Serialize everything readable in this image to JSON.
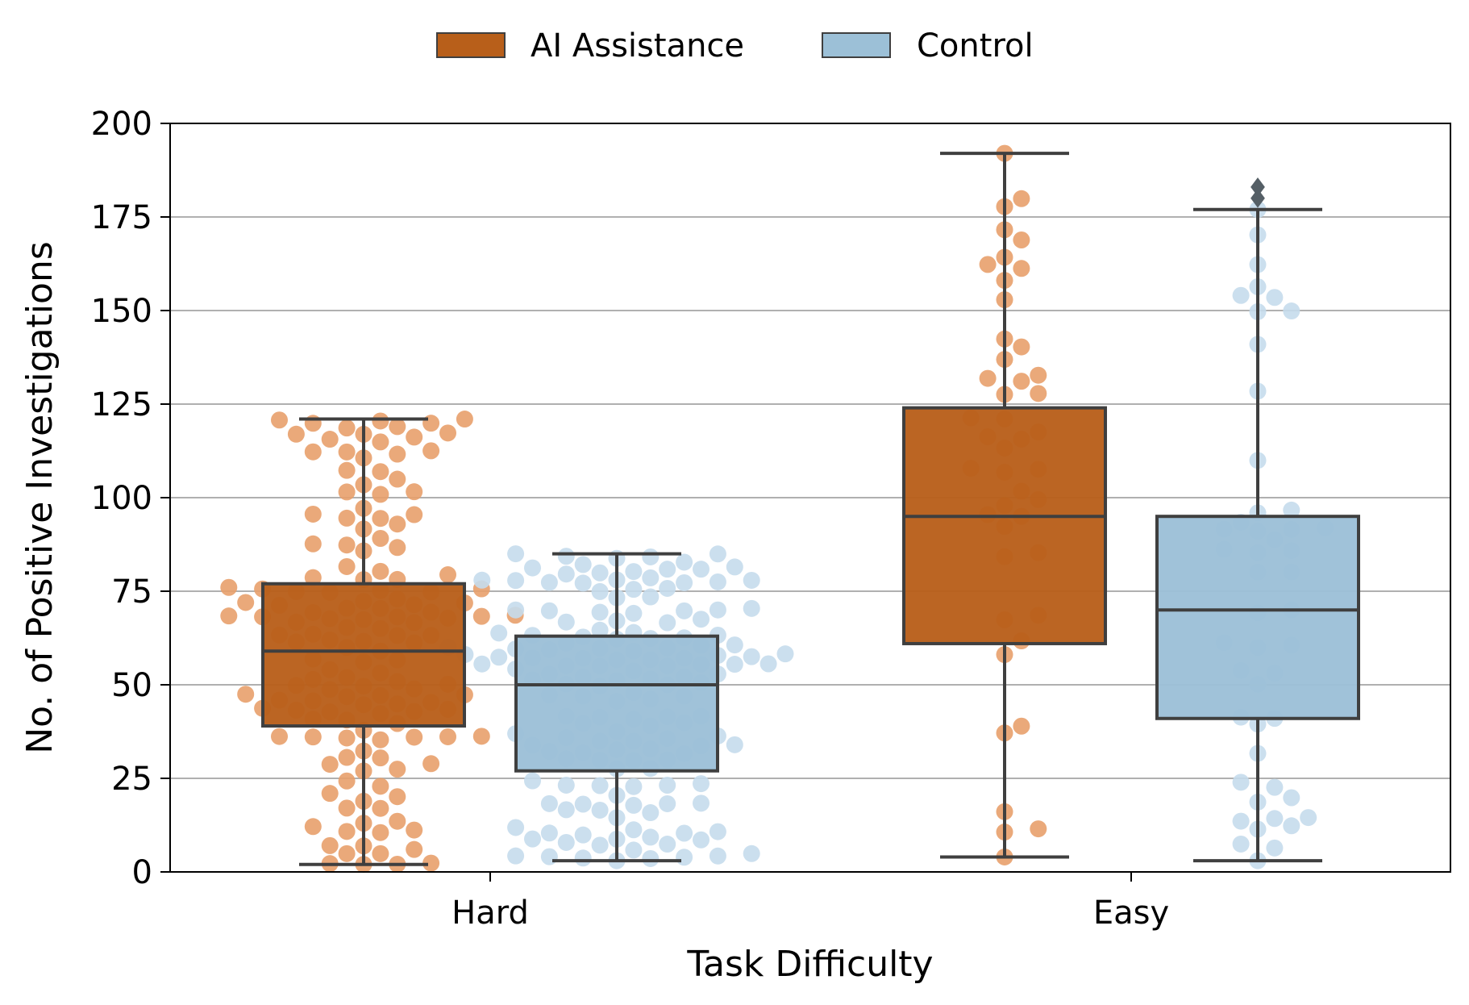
{
  "chart_data": {
    "type": "box",
    "title": "",
    "xlabel": "Task Difficulty",
    "ylabel": "No. of Positive Investigations",
    "ylim": [
      0,
      200
    ],
    "yticks": [
      0,
      25,
      50,
      75,
      100,
      125,
      150,
      175,
      200
    ],
    "grid": "y",
    "categories": [
      "Hard",
      "Easy"
    ],
    "legend": {
      "placement": "top-center",
      "entries": [
        "AI Assistance",
        "Control"
      ]
    },
    "series": [
      {
        "name": "AI Assistance",
        "color": "#b85f1a",
        "point_color": "#e8a06c",
        "boxes": [
          {
            "category": "Hard",
            "whisker_low": 2,
            "q1": 39,
            "median": 59,
            "q3": 77,
            "whisker_high": 121,
            "outliers": []
          },
          {
            "category": "Easy",
            "whisker_low": 4,
            "q1": 61,
            "median": 95,
            "q3": 124,
            "whisker_high": 192,
            "outliers": []
          }
        ]
      },
      {
        "name": "Control",
        "color": "#9cc0d7",
        "point_color": "#c5dcec",
        "boxes": [
          {
            "category": "Hard",
            "whisker_low": 3,
            "q1": 27,
            "median": 50,
            "q3": 63,
            "whisker_high": 85,
            "outliers": []
          },
          {
            "category": "Easy",
            "whisker_low": 3,
            "q1": 41,
            "median": 70,
            "q3": 95,
            "whisker_high": 177,
            "outliers": [
              180,
              183
            ]
          }
        ]
      }
    ]
  }
}
